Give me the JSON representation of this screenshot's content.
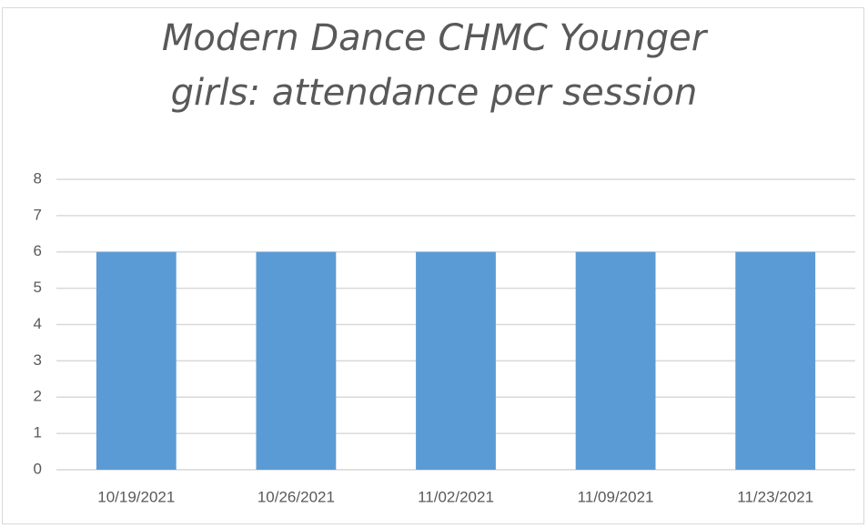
{
  "chart_data": {
    "type": "bar",
    "title": "Modern Dance CHMC Younger girls: attendance per session",
    "categories": [
      "10/19/2021",
      "10/26/2021",
      "11/02/2021",
      "11/09/2021",
      "11/23/2021"
    ],
    "values": [
      6,
      6,
      6,
      6,
      6
    ],
    "color": "#5b9bd5",
    "ylim": [
      0,
      8
    ],
    "yticks": [
      0,
      1,
      2,
      3,
      4,
      5,
      6,
      7,
      8
    ],
    "grid": true
  }
}
